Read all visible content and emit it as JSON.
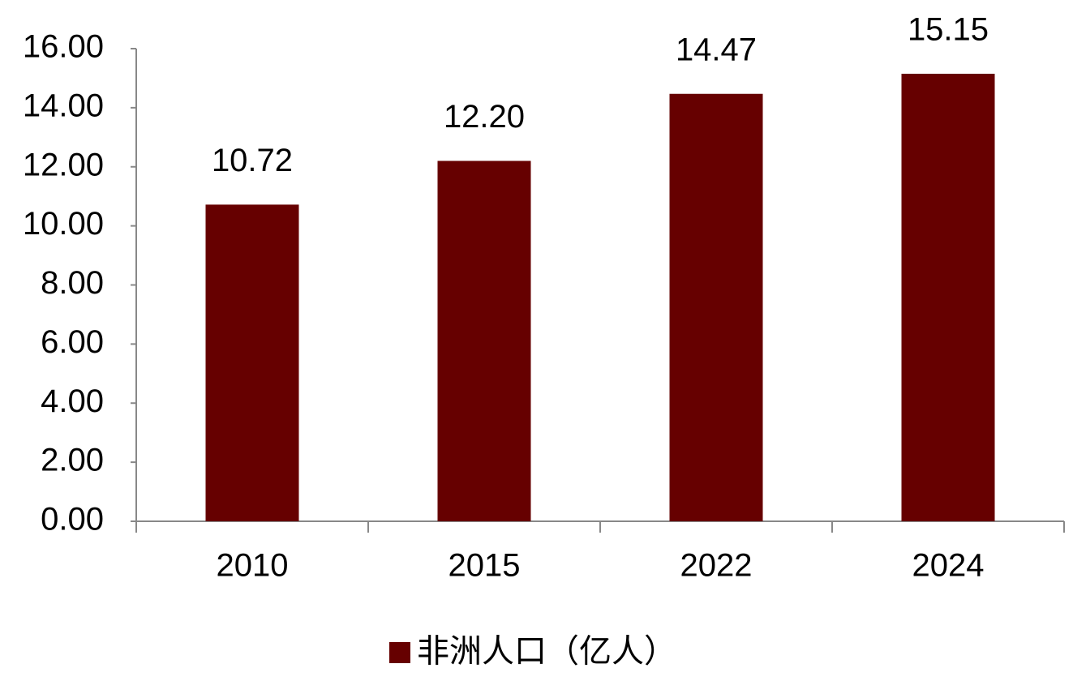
{
  "chart_data": {
    "type": "bar",
    "categories": [
      "2010",
      "2015",
      "2022",
      "2024"
    ],
    "series": [
      {
        "name": "非洲人口（亿人）",
        "color": "#660000",
        "values": [
          10.72,
          12.2,
          14.47,
          15.15
        ],
        "value_labels": [
          "10.72",
          "12.20",
          "14.47",
          "15.15"
        ]
      }
    ],
    "ylim": [
      0,
      16
    ],
    "yticks": [
      {
        "value": 0,
        "label": "0.00"
      },
      {
        "value": 2,
        "label": "2.00"
      },
      {
        "value": 4,
        "label": "4.00"
      },
      {
        "value": 6,
        "label": "6.00"
      },
      {
        "value": 8,
        "label": "8.00"
      },
      {
        "value": 10,
        "label": "10.00"
      },
      {
        "value": 12,
        "label": "12.00"
      },
      {
        "value": 14,
        "label": "14.00"
      },
      {
        "value": 16,
        "label": "16.00"
      }
    ],
    "grid": false,
    "legend": "bottom"
  }
}
